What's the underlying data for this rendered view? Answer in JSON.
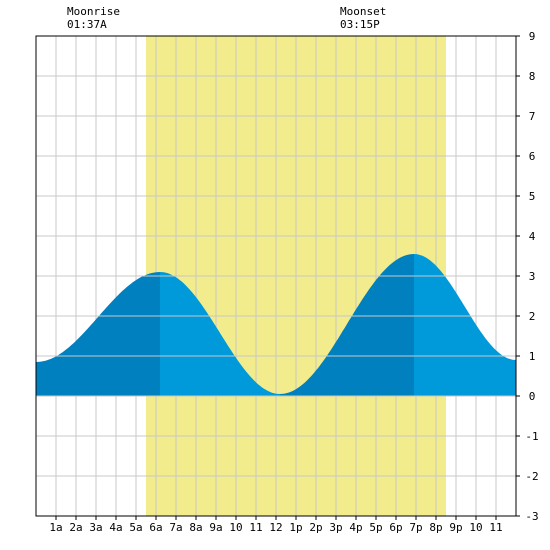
{
  "moon": {
    "moonrise_label": "Moonrise",
    "moonrise_time": "01:37A",
    "moonset_label": "Moonset",
    "moonset_time": "03:15P"
  },
  "colors": {
    "daylight": "#f2ec8c",
    "tide_rising": "#0080bf",
    "tide_falling": "#0099d9",
    "grid": "#c8c8c8",
    "frame": "#000000"
  },
  "chart_data": {
    "type": "area",
    "title": "",
    "xlabel": "",
    "ylabel": "",
    "xlim": [
      0,
      24
    ],
    "ylim": [
      -3,
      9
    ],
    "x_tick_labels": [
      "1a",
      "2a",
      "3a",
      "4a",
      "5a",
      "6a",
      "7a",
      "8a",
      "9a",
      "10",
      "11",
      "12",
      "1p",
      "2p",
      "3p",
      "4p",
      "5p",
      "6p",
      "7p",
      "8p",
      "9p",
      "10",
      "11"
    ],
    "y_tick_labels": [
      "-3",
      "-2",
      "-1",
      "0",
      "1",
      "2",
      "3",
      "4",
      "5",
      "6",
      "7",
      "8",
      "9"
    ],
    "daylight_range": [
      5.5,
      20.5
    ],
    "tide_extrema": [
      {
        "x": 0.0,
        "y": 0.85
      },
      {
        "x": 6.2,
        "y": 3.1
      },
      {
        "x": 12.2,
        "y": 0.05
      },
      {
        "x": 18.9,
        "y": 3.55
      },
      {
        "x": 24.0,
        "y": 0.9
      }
    ],
    "grid": true
  }
}
